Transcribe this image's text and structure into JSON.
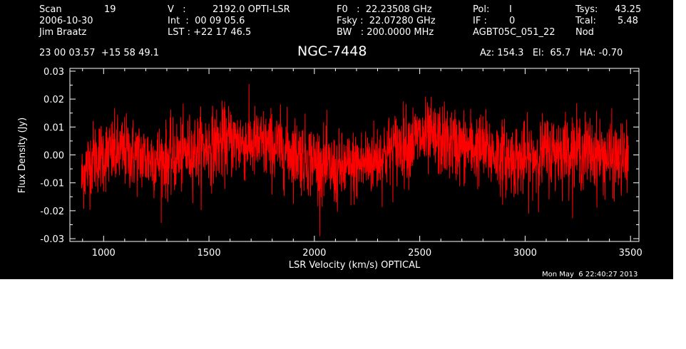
{
  "header": {
    "scan_label": "Scan",
    "scan_number": "19",
    "date": "2006-10-30",
    "observer": "Jim Braatz",
    "coords": "23 00 03.57  +15 58 49.1",
    "v_label": "V   :",
    "v_value": "2192.0 OPTI-LSR",
    "int_line": "Int  :  00 09 05.6",
    "lst_line": "LST : +22 17 46.5",
    "f0_line": "F0   :  22.23508 GHz",
    "fsky_line": "Fsky :  22.07280 GHz",
    "bw_line": "BW   : 200.0000 MHz",
    "pol_label": "Pol:",
    "pol_value": "I",
    "if_label": "IF :",
    "if_value": "0",
    "project": "AGBT05C_051_22",
    "tsys_label": "Tsys:",
    "tsys_value": "43.25",
    "tcal_label": "Tcal:",
    "tcal_value": "5.48",
    "proc": "Nod",
    "source": "NGC-7448",
    "az_el_ha": "Az: 154.3   El:  65.7   HA: -0.70"
  },
  "footer": {
    "timestamp": "Mon May  6 22:40:27 2013"
  },
  "colors": {
    "background": "#000000",
    "foreground": "#ffffff",
    "trace": "#ff0000"
  },
  "chart_data": {
    "type": "line",
    "title": "NGC-7448",
    "xlabel": "LSR Velocity (km/s) OPTICAL",
    "ylabel": "Flux Density (Jy)",
    "xlim": [
      840,
      3540
    ],
    "ylim": [
      -0.031,
      0.031
    ],
    "xticks": [
      1000,
      1500,
      2000,
      2500,
      3000,
      3500
    ],
    "xtick_labels": [
      "1000",
      "1500",
      "2000",
      "2500",
      "3000",
      "3500"
    ],
    "yticks": [
      -0.03,
      -0.02,
      -0.01,
      0.0,
      0.01,
      0.02,
      0.03
    ],
    "ytick_labels": [
      "-0.03",
      "-0.02",
      "-0.01",
      "0.00",
      "0.01",
      "0.02",
      "0.03"
    ],
    "grid": false,
    "legend": "none",
    "series": [
      {
        "x_start": 895,
        "x_end": 3490,
        "noise_sigma_jy": 0.0065,
        "baseline_velocity": [
          895,
          905,
          950,
          1000,
          1100,
          1200,
          1300,
          1400,
          1500,
          1600,
          1700,
          1800,
          1900,
          2000,
          2100,
          2200,
          2300,
          2400,
          2500,
          2600,
          2700,
          2800,
          2900,
          3000,
          3100,
          3200,
          3300,
          3400,
          3490
        ],
        "baseline_flux": [
          -0.01,
          -0.006,
          -0.001,
          0.0,
          0.001,
          -0.001,
          -0.002,
          0.001,
          0.003,
          0.005,
          0.004,
          0.003,
          0.001,
          -0.002,
          -0.006,
          -0.004,
          -0.001,
          0.003,
          0.006,
          0.005,
          0.003,
          0.002,
          -0.001,
          -0.002,
          0.001,
          0.002,
          0.001,
          -0.001,
          -0.002
        ]
      }
    ]
  }
}
